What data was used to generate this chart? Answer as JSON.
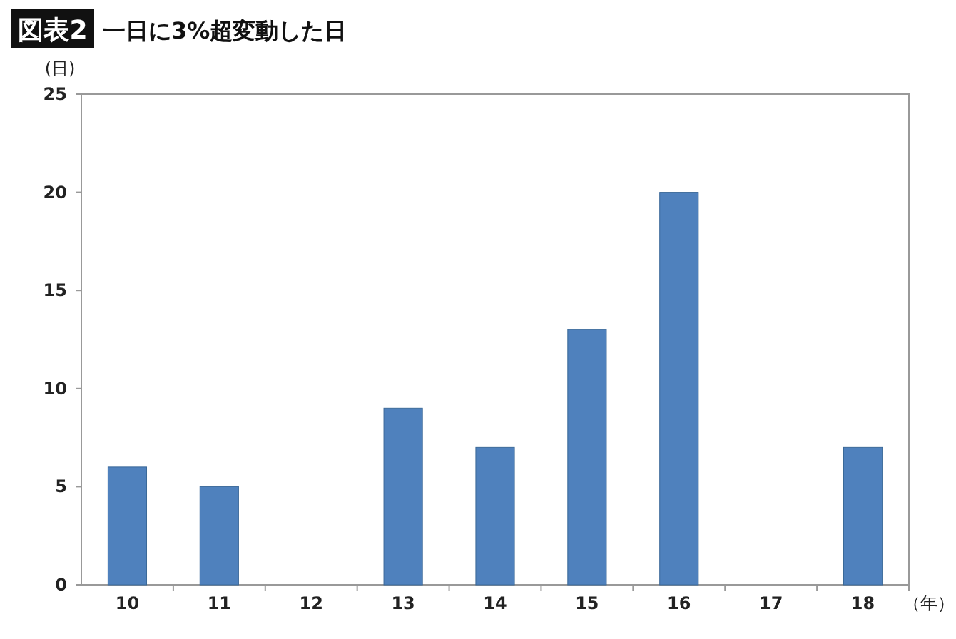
{
  "chart_data": {
    "type": "bar",
    "title": "図表2",
    "subtitle": "一日に3%超変動した日",
    "ylabel": "(日)",
    "xlabel": "（年）",
    "categories": [
      "10",
      "11",
      "12",
      "13",
      "14",
      "15",
      "16",
      "17",
      "18"
    ],
    "values": [
      6,
      5,
      0,
      9,
      7,
      13,
      20,
      0,
      7
    ],
    "color": "#4f81bd",
    "ylim": [
      0,
      25
    ],
    "yticks": [
      0,
      5,
      10,
      15,
      20,
      25
    ],
    "grid": false
  }
}
